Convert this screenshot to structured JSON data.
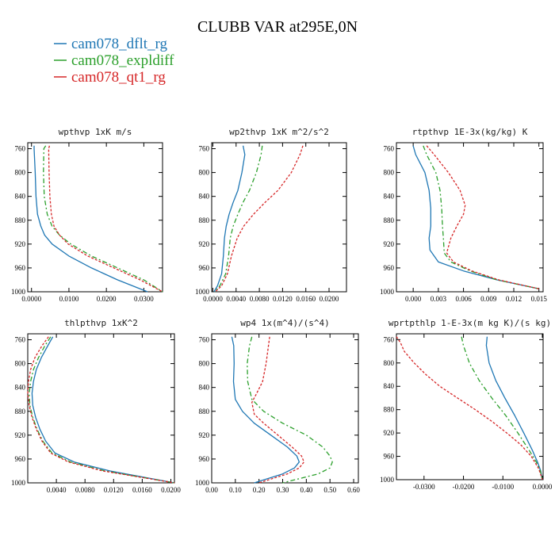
{
  "title": "CLUBB VAR at295E,0N",
  "legend": [
    {
      "label": "cam078_dflt_rg",
      "color": "#1f77b4"
    },
    {
      "label": "cam078_expldiff",
      "color": "#2ca02c"
    },
    {
      "label": "cam078_qt1_rg",
      "color": "#d62728"
    }
  ],
  "chart_data": [
    {
      "type": "line",
      "title": "wpthvp   1xK m/s",
      "xlim": [
        -0.001,
        0.035
      ],
      "ylim": [
        1000,
        750
      ],
      "xticks": [
        0.0,
        0.01,
        0.02,
        0.03
      ],
      "xtick_labels": [
        "0.0000",
        "0.0100",
        "0.0200",
        "0.0300"
      ],
      "yticks": [
        760,
        800,
        840,
        880,
        920,
        960,
        1000
      ],
      "series": [
        {
          "color": "#1f77b4",
          "dash": "",
          "y": [
            755,
            760,
            800,
            840,
            870,
            890,
            905,
            920,
            940,
            960,
            980,
            1000
          ],
          "x": [
            0.0007,
            0.0007,
            0.001,
            0.0012,
            0.0016,
            0.0025,
            0.0035,
            0.0055,
            0.01,
            0.016,
            0.023,
            0.031
          ]
        },
        {
          "color": "#2ca02c",
          "dash": "6,3,2,3",
          "y": [
            755,
            760,
            800,
            840,
            870,
            890,
            905,
            920,
            940,
            960,
            980,
            1000
          ],
          "x": [
            0.0038,
            0.0033,
            0.0032,
            0.0034,
            0.0042,
            0.0055,
            0.0075,
            0.0105,
            0.016,
            0.023,
            0.03,
            0.035
          ]
        },
        {
          "color": "#d62728",
          "dash": "3,2",
          "y": [
            755,
            760,
            800,
            840,
            870,
            890,
            905,
            920,
            940,
            960,
            980,
            1000
          ],
          "x": [
            0.0048,
            0.0046,
            0.0047,
            0.0049,
            0.0053,
            0.006,
            0.0075,
            0.0098,
            0.015,
            0.022,
            0.029,
            0.035
          ]
        }
      ]
    },
    {
      "type": "line",
      "title": "wp2thvp   1xK m^2/s^2",
      "xlim": [
        -0.0002,
        0.023
      ],
      "ylim": [
        1000,
        750
      ],
      "xticks": [
        0.0,
        0.004,
        0.008,
        0.012,
        0.016,
        0.02
      ],
      "xtick_labels": [
        "0.0000",
        "0.0040",
        "0.0080",
        "0.0120",
        "0.0160",
        "0.0200"
      ],
      "yticks": [
        760,
        800,
        840,
        880,
        920,
        960,
        1000
      ],
      "series": [
        {
          "color": "#1f77b4",
          "dash": "",
          "y": [
            755,
            770,
            800,
            830,
            850,
            870,
            890,
            910,
            940,
            970,
            990,
            1000
          ],
          "x": [
            0.0052,
            0.0055,
            0.005,
            0.0043,
            0.0035,
            0.0028,
            0.0023,
            0.002,
            0.0018,
            0.0015,
            0.0008,
            0.0002
          ]
        },
        {
          "color": "#2ca02c",
          "dash": "6,3,2,3",
          "y": [
            755,
            770,
            800,
            830,
            850,
            870,
            890,
            910,
            940,
            970,
            990,
            1000
          ],
          "x": [
            0.0085,
            0.0083,
            0.0075,
            0.0063,
            0.0052,
            0.0043,
            0.0035,
            0.003,
            0.0027,
            0.0022,
            0.0012,
            0.0003
          ]
        },
        {
          "color": "#d62728",
          "dash": "3,2",
          "y": [
            755,
            770,
            800,
            830,
            850,
            870,
            890,
            910,
            940,
            970,
            990,
            1000
          ],
          "x": [
            0.0155,
            0.015,
            0.0135,
            0.0112,
            0.009,
            0.007,
            0.0053,
            0.0042,
            0.0032,
            0.0025,
            0.0015,
            0.0004
          ]
        }
      ]
    },
    {
      "type": "line",
      "title": "rtpthvp   1E-3x(kg/kg) K",
      "xlim": [
        -0.002,
        0.0155
      ],
      "ylim": [
        1000,
        750
      ],
      "xticks": [
        0.0,
        0.003,
        0.006,
        0.009,
        0.012,
        0.015
      ],
      "xtick_labels": [
        "0.000",
        "0.003",
        "0.006",
        "0.009",
        "0.012",
        "0.015"
      ],
      "yticks": [
        760,
        800,
        840,
        880,
        920,
        960,
        1000
      ],
      "series": [
        {
          "color": "#1f77b4",
          "dash": "",
          "y": [
            755,
            770,
            800,
            830,
            860,
            890,
            910,
            930,
            950,
            965,
            980,
            995
          ],
          "x": [
            0.0,
            0.0003,
            0.0014,
            0.0019,
            0.0021,
            0.0021,
            0.0019,
            0.002,
            0.003,
            0.006,
            0.01,
            0.015
          ]
        },
        {
          "color": "#2ca02c",
          "dash": "6,3,2,3",
          "y": [
            755,
            770,
            800,
            830,
            860,
            890,
            910,
            935,
            950,
            965,
            980,
            995
          ],
          "x": [
            0.0012,
            0.0016,
            0.0027,
            0.0032,
            0.0034,
            0.0035,
            0.0036,
            0.0037,
            0.0045,
            0.0068,
            0.01,
            0.015
          ]
        },
        {
          "color": "#d62728",
          "dash": "3,2",
          "y": [
            755,
            770,
            800,
            830,
            855,
            870,
            890,
            910,
            935,
            950,
            965,
            980,
            995
          ],
          "x": [
            0.0016,
            0.0025,
            0.0042,
            0.0056,
            0.0062,
            0.006,
            0.0052,
            0.0045,
            0.004,
            0.0048,
            0.007,
            0.0102,
            0.015
          ]
        }
      ]
    },
    {
      "type": "line",
      "title": "thlpthvp   1xK^2",
      "xlim": [
        0.0,
        0.0205
      ],
      "ylim": [
        1000,
        750
      ],
      "xticks": [
        0.004,
        0.008,
        0.012,
        0.016,
        0.02
      ],
      "xtick_labels": [
        "0.0040",
        "0.0080",
        "0.0120",
        "0.0160",
        "0.0200"
      ],
      "yticks": [
        760,
        800,
        840,
        880,
        920,
        960,
        1000
      ],
      "series": [
        {
          "color": "#1f77b4",
          "dash": "",
          "y": [
            755,
            770,
            790,
            810,
            830,
            850,
            870,
            890,
            910,
            930,
            950,
            965,
            980,
            1000
          ],
          "x": [
            0.0035,
            0.0028,
            0.0019,
            0.0012,
            0.0008,
            0.0006,
            0.0007,
            0.0011,
            0.0017,
            0.0025,
            0.0038,
            0.0065,
            0.0115,
            0.0205
          ]
        },
        {
          "color": "#2ca02c",
          "dash": "6,3,2,3",
          "y": [
            755,
            770,
            790,
            810,
            830,
            850,
            870,
            890,
            910,
            930,
            950,
            965,
            980,
            1000
          ],
          "x": [
            0.0032,
            0.0024,
            0.0015,
            0.0008,
            0.0004,
            0.0002,
            0.0003,
            0.0007,
            0.0013,
            0.0021,
            0.0034,
            0.006,
            0.0108,
            0.0205
          ]
        },
        {
          "color": "#d62728",
          "dash": "3,2",
          "y": [
            755,
            770,
            790,
            810,
            830,
            850,
            870,
            890,
            910,
            930,
            950,
            965,
            980,
            1000
          ],
          "x": [
            0.0029,
            0.002,
            0.001,
            0.0004,
            0.0001,
            0.0,
            0.0002,
            0.0006,
            0.0012,
            0.002,
            0.0032,
            0.0057,
            0.0105,
            0.0205
          ]
        }
      ]
    },
    {
      "type": "line",
      "title": "wp4   1x(m^4)/(s^4)",
      "xlim": [
        0.0,
        0.62
      ],
      "ylim": [
        1000,
        750
      ],
      "xticks": [
        0.0,
        0.1,
        0.2,
        0.3,
        0.4,
        0.5,
        0.6
      ],
      "xtick_labels": [
        "0.00",
        "0.10",
        "0.20",
        "0.30",
        "0.40",
        "0.50",
        "0.60"
      ],
      "yticks": [
        760,
        800,
        840,
        880,
        920,
        960,
        1000
      ],
      "series": [
        {
          "color": "#1f77b4",
          "dash": "",
          "y": [
            755,
            770,
            800,
            830,
            860,
            880,
            900,
            920,
            940,
            955,
            965,
            975,
            985,
            1000
          ],
          "x": [
            0.085,
            0.093,
            0.095,
            0.092,
            0.1,
            0.13,
            0.18,
            0.25,
            0.32,
            0.36,
            0.37,
            0.35,
            0.3,
            0.18
          ]
        },
        {
          "color": "#2ca02c",
          "dash": "6,3,2,3",
          "y": [
            755,
            770,
            800,
            830,
            860,
            880,
            900,
            920,
            940,
            955,
            965,
            975,
            985,
            1000
          ],
          "x": [
            0.17,
            0.16,
            0.15,
            0.152,
            0.17,
            0.22,
            0.3,
            0.4,
            0.47,
            0.5,
            0.51,
            0.5,
            0.45,
            0.3
          ]
        },
        {
          "color": "#d62728",
          "dash": "3,2",
          "y": [
            755,
            770,
            800,
            830,
            850,
            865,
            885,
            900,
            920,
            940,
            955,
            965,
            975,
            985,
            1000
          ],
          "x": [
            0.245,
            0.24,
            0.23,
            0.215,
            0.19,
            0.17,
            0.18,
            0.22,
            0.28,
            0.34,
            0.38,
            0.39,
            0.37,
            0.32,
            0.2
          ]
        }
      ]
    },
    {
      "type": "line",
      "title": "wprtpthlp   1-E-3x(m kg K)/(s kg)",
      "xlim": [
        -0.037,
        0.0002
      ],
      "ylim": [
        1000,
        750
      ],
      "xticks": [
        -0.03,
        -0.02,
        -0.01,
        0.0
      ],
      "xtick_labels": [
        "-0.0300",
        "-0.0200",
        "-0.0100",
        "0.0000"
      ],
      "yticks": [
        760,
        800,
        840,
        880,
        920,
        960,
        1000
      ],
      "series": [
        {
          "color": "#1f77b4",
          "dash": "",
          "y": [
            755,
            770,
            800,
            830,
            860,
            890,
            920,
            950,
            970,
            985,
            1000
          ],
          "x": [
            -0.014,
            -0.0142,
            -0.0135,
            -0.0118,
            -0.0095,
            -0.007,
            -0.0047,
            -0.0025,
            -0.0012,
            -0.0004,
            0.0
          ]
        },
        {
          "color": "#2ca02c",
          "dash": "6,3,2,3",
          "y": [
            755,
            770,
            800,
            830,
            860,
            890,
            920,
            950,
            970,
            985,
            1000
          ],
          "x": [
            -0.0205,
            -0.02,
            -0.0185,
            -0.016,
            -0.0128,
            -0.0093,
            -0.0062,
            -0.0033,
            -0.0015,
            -0.0005,
            0.0
          ]
        },
        {
          "color": "#d62728",
          "dash": "3,2",
          "y": [
            755,
            765,
            780,
            800,
            820,
            840,
            860,
            880,
            900,
            920,
            940,
            960,
            980,
            995,
            1000
          ],
          "x": [
            -0.037,
            -0.036,
            -0.035,
            -0.0325,
            -0.0295,
            -0.026,
            -0.0215,
            -0.017,
            -0.0128,
            -0.009,
            -0.0055,
            -0.0028,
            -0.001,
            -0.0002,
            0.0
          ]
        }
      ]
    }
  ]
}
